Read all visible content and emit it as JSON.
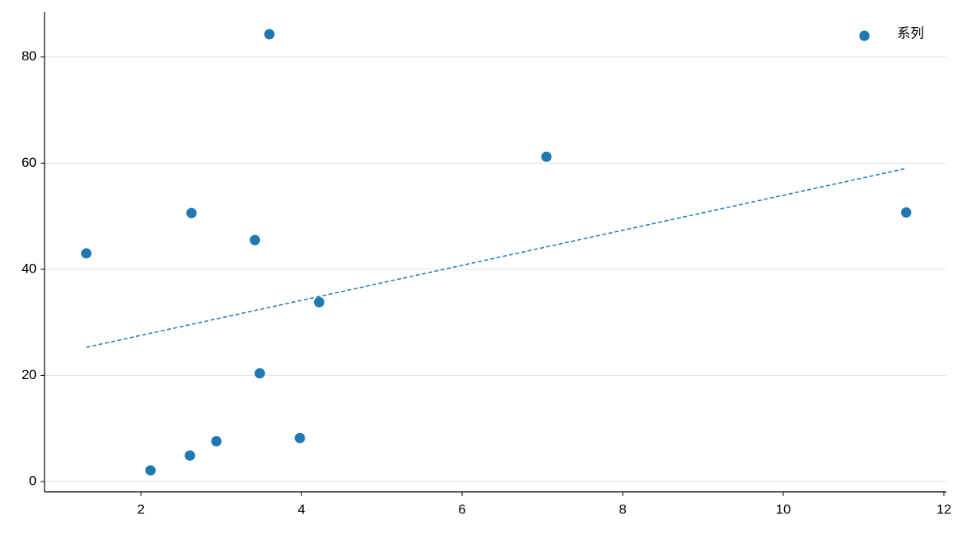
{
  "chart_data": {
    "type": "scatter",
    "series": [
      {
        "name": "系列",
        "color": "#1f77b4",
        "x": [
          1.32,
          2.12,
          2.61,
          2.63,
          2.94,
          3.42,
          3.48,
          3.6,
          3.98,
          4.22,
          7.05,
          11.53
        ],
        "values": [
          43.0,
          2.1,
          4.9,
          50.6,
          7.6,
          45.5,
          20.4,
          84.3,
          8.2,
          33.8,
          61.2,
          50.7
        ]
      }
    ],
    "trend_line": {
      "x": [
        1.32,
        11.53
      ],
      "values": [
        25.3,
        59.0
      ],
      "color": "#1f77b4",
      "dashed": true
    },
    "xlim": [
      0.8,
      12.03
    ],
    "xticks": [
      2,
      4,
      6,
      8,
      10,
      12
    ],
    "ylim": [
      -1.95,
      88.5
    ],
    "yticks": [
      0,
      20,
      40,
      60,
      80
    ],
    "grid": true,
    "legend": "upper right"
  }
}
